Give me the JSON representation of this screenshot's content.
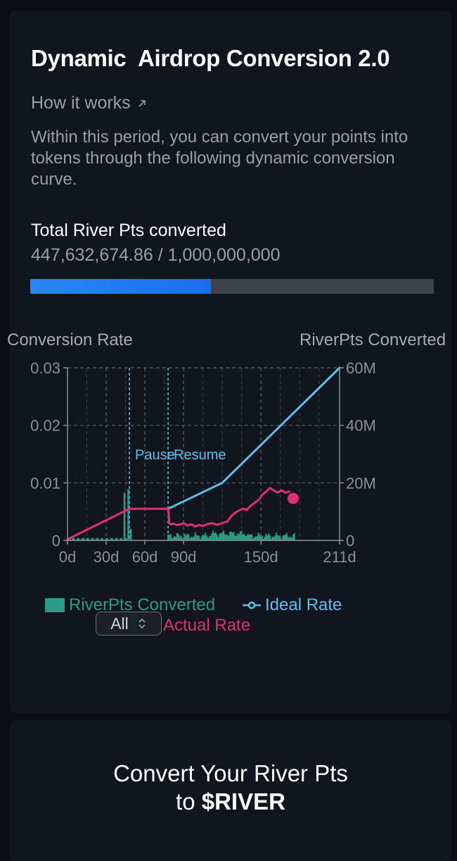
{
  "header": {
    "title": "Dynamic  Airdrop Conversion 2.0",
    "how_it_works": "How it works",
    "description": "Within this period, you can convert your points into tokens through the following dynamic conversion curve."
  },
  "progress": {
    "label": "Total River Pts converted",
    "value_text": "447,632,674.86 / 1,000,000,000",
    "converted": 447632674.86,
    "total": 1000000000,
    "fill_color": "#1a6ef0"
  },
  "chart_data": {
    "type": "line",
    "left_axis_title": "Conversion Rate",
    "right_axis_title": "RiverPts Converted",
    "x_unit": "day",
    "xlim": [
      0,
      211
    ],
    "x_ticks": [
      0,
      30,
      60,
      90,
      150,
      211
    ],
    "x_tick_labels": [
      "0d",
      "30d",
      "60d",
      "90d",
      "150d",
      "211d"
    ],
    "y_left_lim": [
      0,
      0.03
    ],
    "y_left_ticks": [
      0,
      0.01,
      0.02,
      0.03
    ],
    "y_left_tick_labels": [
      "0",
      "0.01",
      "0.02",
      "0.03"
    ],
    "y_right_lim": [
      0,
      60000000
    ],
    "y_right_ticks": [
      0,
      20000000,
      40000000,
      60000000
    ],
    "y_right_tick_labels": [
      "0",
      "20M",
      "40M",
      "60M"
    ],
    "grid": true,
    "annotations": [
      {
        "text": "Pause",
        "x": 48
      },
      {
        "text": "Resume",
        "x": 78
      }
    ],
    "series": [
      {
        "name": "Ideal Rate",
        "color": "#5cc0ee",
        "points": [
          [
            78,
            0.0055
          ],
          [
            120,
            0.01
          ],
          [
            211,
            0.03
          ]
        ]
      },
      {
        "name": "Actual Rate",
        "color": "#e0306e",
        "points": [
          [
            0,
            0.0002
          ],
          [
            48,
            0.0055
          ],
          [
            78,
            0.0055
          ],
          [
            79,
            0.003
          ],
          [
            80,
            0.0028
          ],
          [
            82,
            0.0029
          ],
          [
            85,
            0.0027
          ],
          [
            88,
            0.0028
          ],
          [
            90,
            0.003
          ],
          [
            93,
            0.0026
          ],
          [
            96,
            0.0028
          ],
          [
            99,
            0.0024
          ],
          [
            102,
            0.0027
          ],
          [
            105,
            0.0025
          ],
          [
            108,
            0.0028
          ],
          [
            112,
            0.003
          ],
          [
            116,
            0.0027
          ],
          [
            120,
            0.003
          ],
          [
            124,
            0.0033
          ],
          [
            127,
            0.0042
          ],
          [
            130,
            0.0048
          ],
          [
            133,
            0.0052
          ],
          [
            136,
            0.0055
          ],
          [
            139,
            0.0053
          ],
          [
            142,
            0.006
          ],
          [
            145,
            0.0065
          ],
          [
            148,
            0.007
          ],
          [
            151,
            0.0079
          ],
          [
            154,
            0.0085
          ],
          [
            157,
            0.0091
          ],
          [
            160,
            0.0087
          ],
          [
            163,
            0.0083
          ],
          [
            166,
            0.0087
          ],
          [
            169,
            0.0083
          ],
          [
            172,
            0.0085
          ]
        ],
        "end_marker": [
          175,
          0.0073
        ]
      },
      {
        "name": "RiverPts Converted",
        "type": "bar",
        "color": "#2a9b86",
        "axis": "right",
        "spikes": [
          [
            44,
            16600000
          ],
          [
            47,
            17800000
          ],
          [
            49,
            4000000
          ]
        ]
      }
    ]
  },
  "legend": {
    "bars": "RiverPts Converted",
    "ideal": "Ideal Rate",
    "actual": "Actual Rate"
  },
  "range_select": {
    "value": "All"
  },
  "cta": {
    "line1": "Convert Your River Pts",
    "line2_prefix": "to",
    "token": "$RIVER"
  }
}
